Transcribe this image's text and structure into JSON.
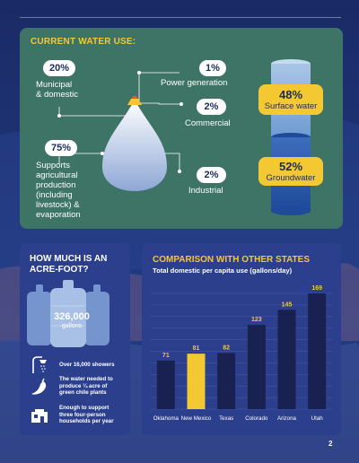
{
  "water_use": {
    "heading": "CURRENT WATER USE:",
    "municipal": {
      "pct": "20%",
      "label_1": "Municipal",
      "label_2": "& domestic"
    },
    "agricultural": {
      "pct": "75%",
      "label_1": "Supports",
      "label_2": "agricultural",
      "label_3": "production",
      "label_4": "(including",
      "label_5": "livestock) &",
      "label_6": "evaporation"
    },
    "power": {
      "pct": "1%",
      "label": "Power generation"
    },
    "commercial": {
      "pct": "2%",
      "label": "Commercial"
    },
    "industrial": {
      "pct": "2%",
      "label": "Industrial"
    },
    "surface": {
      "pct": "48%",
      "label": "Surface water"
    },
    "ground": {
      "pct": "52%",
      "label": "Groundwater"
    }
  },
  "acre_foot": {
    "heading_1": "HOW MUCH IS AN",
    "heading_2": "ACRE-FOOT?",
    "gallons_value": "326,000",
    "gallons_unit": "gallons",
    "fact_1": "Over 16,000 showers",
    "fact_2_l1": "The water needed to",
    "fact_2_l2": "produce ¼ acre of",
    "fact_2_l3": "green chile plants",
    "fact_3_l1": "Enough to support",
    "fact_3_l2": "three four-person",
    "fact_3_l3": "households per year"
  },
  "chart_data": {
    "type": "bar",
    "title": "COMPARISON WITH OTHER STATES",
    "subtitle": "Total domestic per capita use (gallons/day)",
    "categories": [
      "Oklahoma",
      "New Mexico",
      "Texas",
      "Colorado",
      "Arizona",
      "Utah"
    ],
    "values": [
      71,
      81,
      82,
      123,
      145,
      169
    ],
    "highlight": "New Mexico",
    "colors": {
      "bar": "#18214f",
      "highlight": "#f4c832",
      "label": "#f4c832"
    },
    "ylim": [
      0,
      169
    ],
    "grid": true
  },
  "page_number": "2"
}
